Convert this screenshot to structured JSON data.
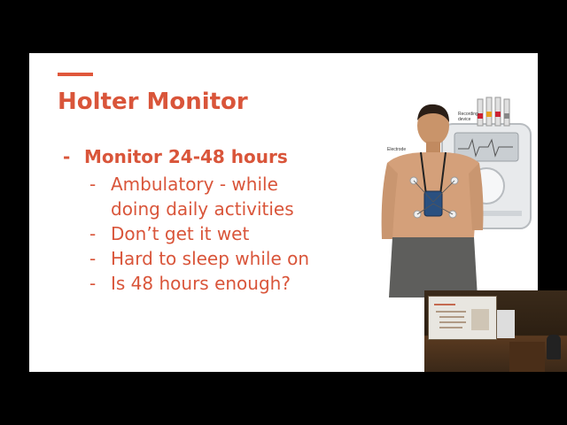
{
  "slide": {
    "title": "Holter Monitor",
    "main_bullet": "Monitor 24-48 hours",
    "bullet_marker": "-",
    "sub_bullets": [
      "Ambulatory - while",
      "doing daily activities",
      "Don’t get it wet",
      "Hard to sleep while on",
      "Is 48 hours enough?"
    ],
    "image_labels": {
      "electrode": "Electrode",
      "recording_device_line1": "Recording",
      "recording_device_line2": "device"
    }
  },
  "colors": {
    "accent": "#d9553a",
    "background": "#000000",
    "slide_bg": "#ffffff"
  }
}
